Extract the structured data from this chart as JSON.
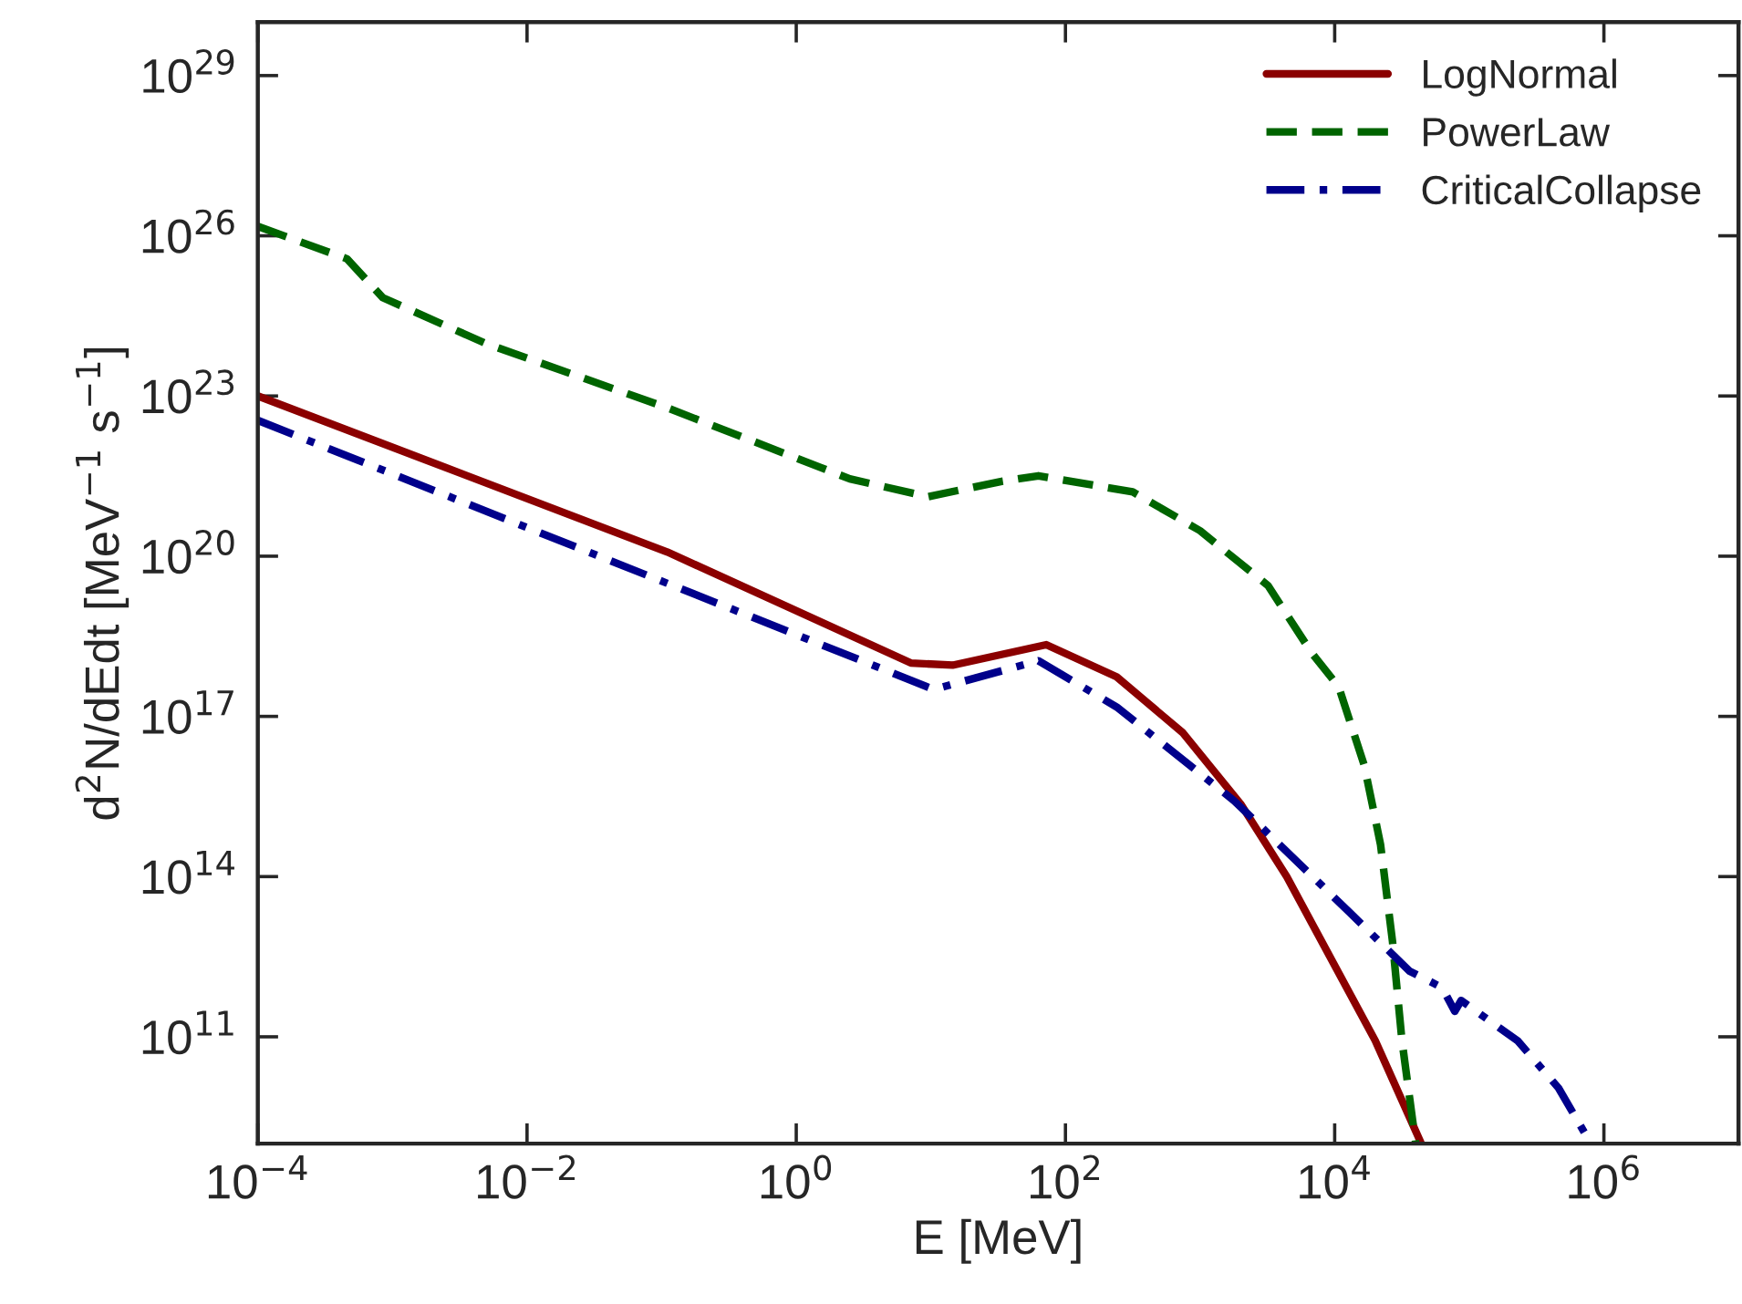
{
  "chart_data": {
    "type": "line",
    "xlabel": "E [MeV]",
    "ylabel": "d$^{2}$N/dEdt [MeV$^{−1}$ s$^{−1}$]",
    "log": "xy",
    "grid": false,
    "legend": "top right",
    "xlim": [
      0.0001,
      10000000
    ],
    "ylim": [
      1000000000.0,
      1e+30
    ],
    "xticks": [
      {
        "value": 0.0001,
        "label": "10$^{−4}$"
      },
      {
        "value": 0.01,
        "label": "10$^{−2}$"
      },
      {
        "value": 1,
        "label": "10$^{0}$"
      },
      {
        "value": 100,
        "label": "10$^{2}$"
      },
      {
        "value": 10000,
        "label": "10$^{4}$"
      },
      {
        "value": 1000000,
        "label": "10$^{6}$"
      }
    ],
    "yticks": [
      {
        "value": 100000000000.0,
        "label": "10$^{11}$"
      },
      {
        "value": 100000000000000.0,
        "label": "10$^{14}$"
      },
      {
        "value": 1e+17,
        "label": "10$^{17}$"
      },
      {
        "value": 1e+20,
        "label": "10$^{20}$"
      },
      {
        "value": 1e+23,
        "label": "10$^{23}$"
      },
      {
        "value": 1e+26,
        "label": "10$^{26}$"
      },
      {
        "value": 1e+29,
        "label": "10$^{29}$"
      }
    ],
    "series": [
      {
        "name": "LogNormal",
        "color": "#8b0000",
        "line_style": "solid",
        "x": [
          0.0001,
          0.11,
          7.1,
          14.5,
          72,
          240,
          740,
          2000,
          4400,
          20000,
          44000
        ],
        "values": [
          1e+23,
          1.2e+20,
          1e+18,
          9.1e+17,
          2.2e+18,
          5.5e+17,
          5e+16,
          2300000000000000.0,
          100000000000000.0,
          85000000000.0,
          1000000000.0
        ]
      },
      {
        "name": "PowerLaw",
        "color": "#006400",
        "line_style": "dashed",
        "x": [
          0.0001,
          0.00046,
          0.00085,
          0.005,
          0.11,
          2.5,
          9.5,
          33,
          63,
          316,
          1000,
          3200,
          6800,
          10700,
          16600,
          21900,
          26900,
          31600,
          40000
        ],
        "values": [
          1.5e+26,
          3.7e+25,
          6.9e+24,
          9.5e+23,
          6e+22,
          2.8e+21,
          1.3e+21,
          2.5e+21,
          3.2e+21,
          1.6e+21,
          3e+20,
          2.8e+19,
          1.5e+18,
          3.6e+17,
          1.2e+16,
          400000000000000.0,
          6000000000000.0,
          85000000000.0,
          1000000000.0
        ]
      },
      {
        "name": "CriticalCollapse",
        "color": "#00008b",
        "line_style": "dashdot",
        "x": [
          0.0001,
          10.5,
          63,
          240,
          1800,
          13000,
          36000,
          63000,
          78000,
          87000,
          230000,
          460000,
          800000
        ],
        "values": [
          3.5e+22,
          3.2e+17,
          1.1e+18,
          1.5e+17,
          2600000000000000.0,
          21000000000000.0,
          1700000000000.0,
          830000000000.0,
          300000000000.0,
          480000000000.0,
          83000000000.0,
          11000000000.0,
          1000000000.0
        ]
      }
    ]
  }
}
